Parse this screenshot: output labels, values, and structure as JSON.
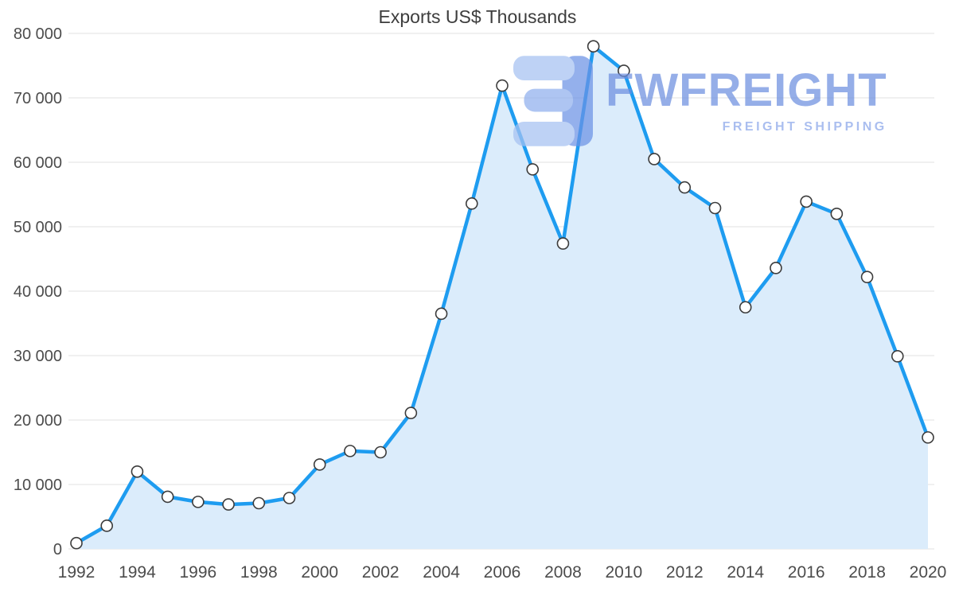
{
  "title": "Exports US$ Thousands",
  "watermark": {
    "brand": "FWFREIGHT",
    "tagline": "FREIGHT SHIPPING"
  },
  "colors": {
    "line": "#1e9cf0",
    "area": "#dbecfb",
    "marker_fill": "#ffffff",
    "marker_stroke": "#3c3c3c",
    "grid": "#e1e1e1",
    "axis_text": "#4c4c4c",
    "title_text": "#3d3d3d",
    "watermark_logo_light": "#a6c2f2",
    "watermark_logo_mid": "#8fb0ee",
    "watermark_logo_dark": "#6b93e6"
  },
  "chart_data": {
    "type": "area",
    "title": "Exports US$ Thousands",
    "x": [
      1992,
      1993,
      1994,
      1995,
      1996,
      1997,
      1998,
      1999,
      2000,
      2001,
      2002,
      2003,
      2004,
      2005,
      2006,
      2007,
      2008,
      2009,
      2010,
      2011,
      2012,
      2013,
      2014,
      2015,
      2016,
      2017,
      2018,
      2019,
      2020
    ],
    "values": [
      900,
      3600,
      12000,
      8100,
      7300,
      6900,
      7100,
      7900,
      13100,
      15200,
      15000,
      21100,
      36500,
      53600,
      71900,
      58900,
      47400,
      78000,
      74200,
      60500,
      56100,
      52900,
      37500,
      43600,
      53900,
      52000,
      42200,
      29900,
      17300
    ],
    "xlabel": "",
    "ylabel": "",
    "ylim": [
      0,
      80000
    ],
    "ytick_step": 10000,
    "ytick_labels": [
      "0",
      "10 000",
      "20 000",
      "30 000",
      "40 000",
      "50 000",
      "60 000",
      "70 000",
      "80 000"
    ],
    "xtick_every": 2,
    "xtick_labels": [
      "1992",
      "1994",
      "1996",
      "1998",
      "2000",
      "2002",
      "2004",
      "2006",
      "2008",
      "2010",
      "2012",
      "2014",
      "2016",
      "2018",
      "2020"
    ],
    "grid": "horizontal",
    "legend": "none",
    "marker": "circle"
  }
}
